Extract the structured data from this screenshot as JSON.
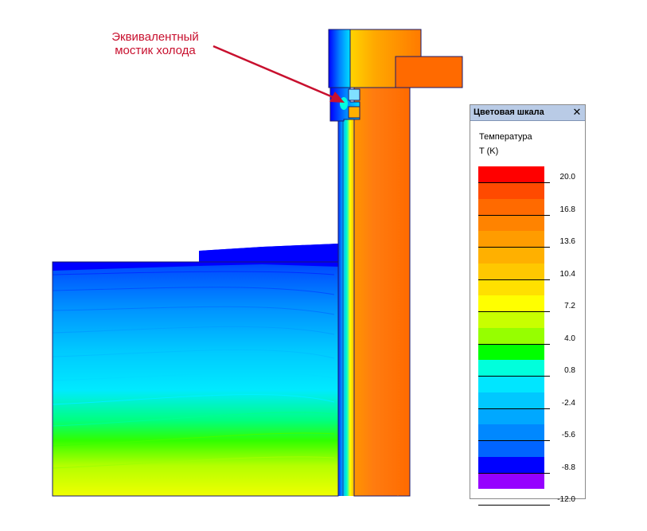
{
  "annotation": {
    "line1": "Эквивалентный",
    "line2": "мостик холода",
    "color": "#c8102e"
  },
  "legend": {
    "title": "Цветовая шкала",
    "close_glyph": "✕",
    "quantity": "Температура",
    "unit": "T (K)",
    "ticks": [
      "20.0",
      "16.8",
      "13.6",
      "10.4",
      "7.2",
      "4.0",
      "0.8",
      "-2.4",
      "-5.6",
      "-8.8",
      "-12.0"
    ],
    "band_colors": [
      "#ff0000",
      "#ff4a00",
      "#ff6a00",
      "#ff8300",
      "#ff9c00",
      "#ffb000",
      "#ffc800",
      "#ffe000",
      "#ffff00",
      "#c8ff00",
      "#96ff00",
      "#00ff00",
      "#00ffdc",
      "#00e6ff",
      "#00c8ff",
      "#00a8ff",
      "#0088ff",
      "#0064ff",
      "#0000ff",
      "#9600ff"
    ]
  },
  "colors": {
    "wall": "#ff7a1a",
    "wall_inner": "#ff8a20",
    "slab": "#ff6a00",
    "frost_top": "#0000ff",
    "frost_bottom": "#ffff00",
    "outline": "#1a1a6e"
  }
}
